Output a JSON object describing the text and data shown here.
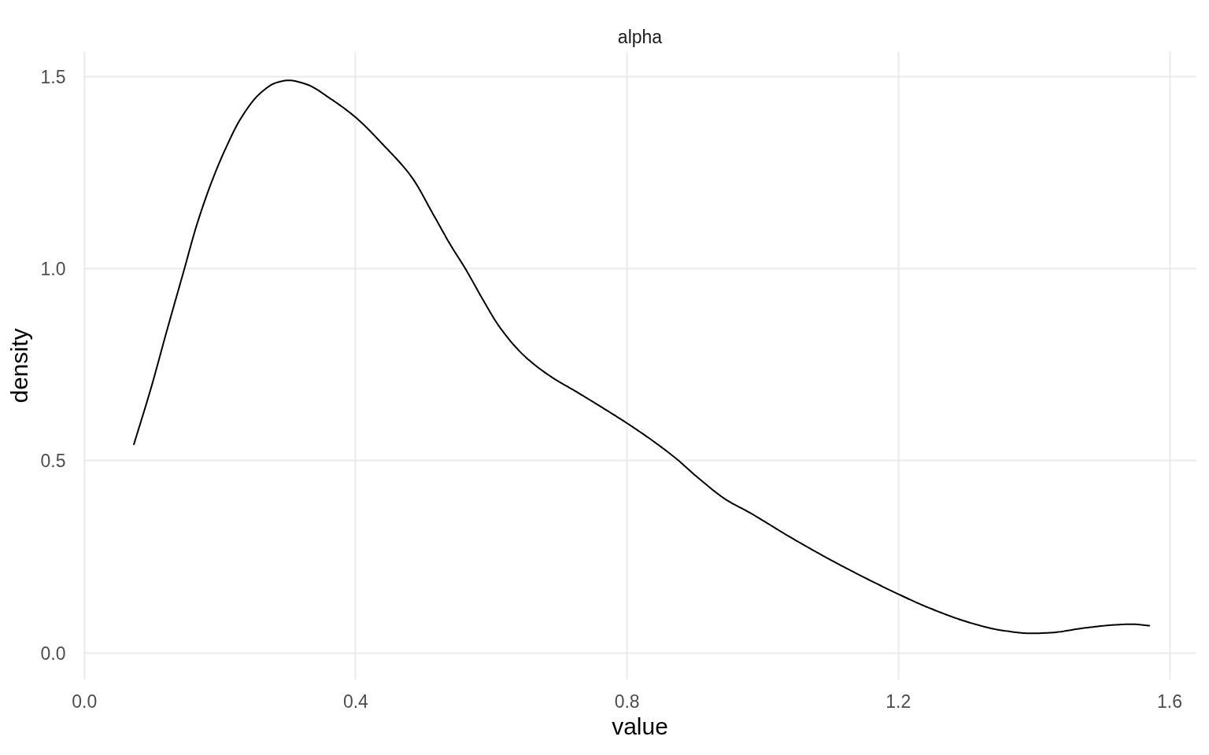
{
  "chart_data": {
    "type": "line",
    "title": "alpha",
    "xlabel": "value",
    "ylabel": "density",
    "x": [
      0.073,
      0.099,
      0.121,
      0.147,
      0.165,
      0.187,
      0.207,
      0.231,
      0.259,
      0.283,
      0.301,
      0.327,
      0.363,
      0.401,
      0.439,
      0.483,
      0.515,
      0.539,
      0.563,
      0.586,
      0.613,
      0.648,
      0.687,
      0.726,
      0.764,
      0.799,
      0.838,
      0.873,
      0.904,
      0.946,
      0.981,
      1.042,
      1.112,
      1.199,
      1.243,
      1.309,
      1.352,
      1.396,
      1.426,
      1.474,
      1.518,
      1.544,
      1.57
    ],
    "values": [
      0.543,
      0.694,
      0.835,
      0.997,
      1.11,
      1.223,
      1.308,
      1.392,
      1.456,
      1.484,
      1.49,
      1.48,
      1.442,
      1.392,
      1.325,
      1.237,
      1.139,
      1.064,
      0.996,
      0.924,
      0.846,
      0.774,
      0.72,
      0.679,
      0.638,
      0.599,
      0.552,
      0.505,
      0.457,
      0.399,
      0.365,
      0.3,
      0.231,
      0.154,
      0.119,
      0.077,
      0.059,
      0.051,
      0.053,
      0.065,
      0.073,
      0.075,
      0.071
    ],
    "color": "#000000",
    "xlim": [
      -0.002,
      1.64
    ],
    "ylim": [
      -0.07,
      1.565
    ],
    "xticks": [
      {
        "value": 0,
        "label": "0.0"
      },
      0.4,
      0.8,
      1.2,
      1.6
    ],
    "yticks": [
      {
        "value": 0,
        "label": "0.0"
      },
      0.5,
      {
        "value": 1,
        "label": "1.0"
      },
      1.5
    ],
    "grid": true
  }
}
